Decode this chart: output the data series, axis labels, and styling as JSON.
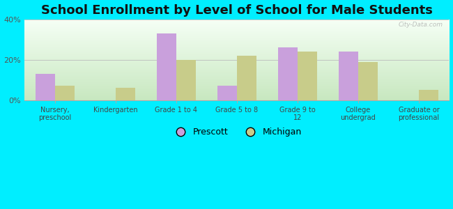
{
  "title": "School Enrollment by Level of School for Male Students",
  "categories": [
    "Nursery,\npreschool",
    "Kindergarten",
    "Grade 1 to 4",
    "Grade 5 to 8",
    "Grade 9 to\n12",
    "College\nundergrad",
    "Graduate or\nprofessional"
  ],
  "prescott": [
    13,
    0,
    33,
    7,
    26,
    24,
    0
  ],
  "michigan": [
    7,
    6,
    20,
    22,
    24,
    19,
    5
  ],
  "prescott_color": "#c9a0dc",
  "michigan_color": "#c8cc8a",
  "background_outer": "#00eeff",
  "background_plot_top": "#f5fff5",
  "background_plot_bottom": "#c8e8c0",
  "ylim": [
    0,
    40
  ],
  "yticks": [
    0,
    20,
    40
  ],
  "ytick_labels": [
    "0%",
    "20%",
    "40%"
  ],
  "legend_labels": [
    "Prescott",
    "Michigan"
  ],
  "title_fontsize": 13,
  "bar_width": 0.32
}
